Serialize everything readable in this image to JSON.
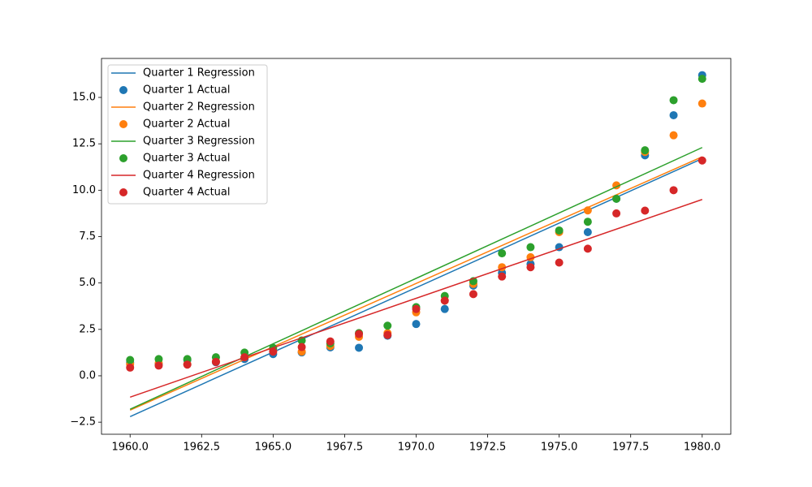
{
  "chart_data": {
    "type": "scatter",
    "x": [
      1960,
      1961,
      1962,
      1963,
      1964,
      1965,
      1966,
      1967,
      1968,
      1969,
      1970,
      1971,
      1972,
      1973,
      1974,
      1975,
      1976,
      1977,
      1978,
      1979,
      1980
    ],
    "series": [
      {
        "name": "Quarter 1 Regression",
        "type": "line",
        "color": "#1f77b4",
        "x": [
          1960,
          1980
        ],
        "values": [
          -2.2,
          11.7
        ]
      },
      {
        "name": "Quarter 1 Actual",
        "type": "scatter",
        "color": "#1f77b4",
        "values": [
          0.71,
          0.63,
          0.85,
          0.73,
          0.9,
          1.17,
          1.26,
          1.53,
          1.51,
          2.16,
          2.79,
          3.6,
          4.86,
          5.55,
          6.03,
          6.93,
          7.74,
          9.54,
          11.88,
          14.04,
          16.2
        ]
      },
      {
        "name": "Quarter 2 Regression",
        "type": "line",
        "color": "#ff7f0e",
        "x": [
          1960,
          1980
        ],
        "values": [
          -1.85,
          11.8
        ]
      },
      {
        "name": "Quarter 2 Actual",
        "type": "scatter",
        "color": "#ff7f0e",
        "values": [
          0.63,
          0.69,
          0.63,
          0.78,
          1.0,
          1.35,
          1.3,
          1.6,
          2.1,
          2.3,
          3.42,
          4.05,
          4.95,
          5.85,
          6.39,
          7.74,
          8.91,
          10.26,
          12.06,
          12.96,
          14.67
        ]
      },
      {
        "name": "Quarter 3 Regression",
        "type": "line",
        "color": "#2ca02c",
        "x": [
          1960,
          1980
        ],
        "values": [
          -1.8,
          12.3
        ]
      },
      {
        "name": "Quarter 3 Actual",
        "type": "scatter",
        "color": "#2ca02c",
        "values": [
          0.85,
          0.9,
          0.9,
          1.0,
          1.25,
          1.5,
          1.9,
          1.75,
          2.3,
          2.7,
          3.7,
          4.3,
          5.1,
          6.6,
          6.93,
          7.83,
          8.3,
          9.54,
          12.15,
          14.85,
          16.0
        ]
      },
      {
        "name": "Quarter 4 Regression",
        "type": "line",
        "color": "#d62728",
        "x": [
          1960,
          1980
        ],
        "values": [
          -1.15,
          9.5
        ]
      },
      {
        "name": "Quarter 4 Actual",
        "type": "scatter",
        "color": "#d62728",
        "values": [
          0.44,
          0.55,
          0.6,
          0.75,
          1.0,
          1.3,
          1.55,
          1.85,
          2.25,
          2.2,
          3.6,
          4.05,
          4.4,
          5.35,
          5.85,
          6.1,
          6.85,
          8.75,
          8.9,
          10.0,
          11.6
        ]
      }
    ],
    "xlim": [
      1959,
      1981
    ],
    "ylim": [
      -3.15,
      17.1
    ],
    "xticks": [
      {
        "value": 1960,
        "label": "1960.0"
      },
      {
        "value": 1962.5,
        "label": "1962.5"
      },
      {
        "value": 1965,
        "label": "1965.0"
      },
      {
        "value": 1967.5,
        "label": "1967.5"
      },
      {
        "value": 1970,
        "label": "1970.0"
      },
      {
        "value": 1972.5,
        "label": "1972.5"
      },
      {
        "value": 1975,
        "label": "1975.0"
      },
      {
        "value": 1977.5,
        "label": "1977.5"
      },
      {
        "value": 1980,
        "label": "1980.0"
      }
    ],
    "yticks": [
      {
        "value": -2.5,
        "label": "−2.5"
      },
      {
        "value": 0,
        "label": "0.0"
      },
      2.5,
      {
        "value": 5,
        "label": "5.0"
      },
      7.5,
      {
        "value": 10,
        "label": "10.0"
      },
      12.5,
      {
        "value": 15,
        "label": "15.0"
      }
    ],
    "legend": "upper left"
  }
}
